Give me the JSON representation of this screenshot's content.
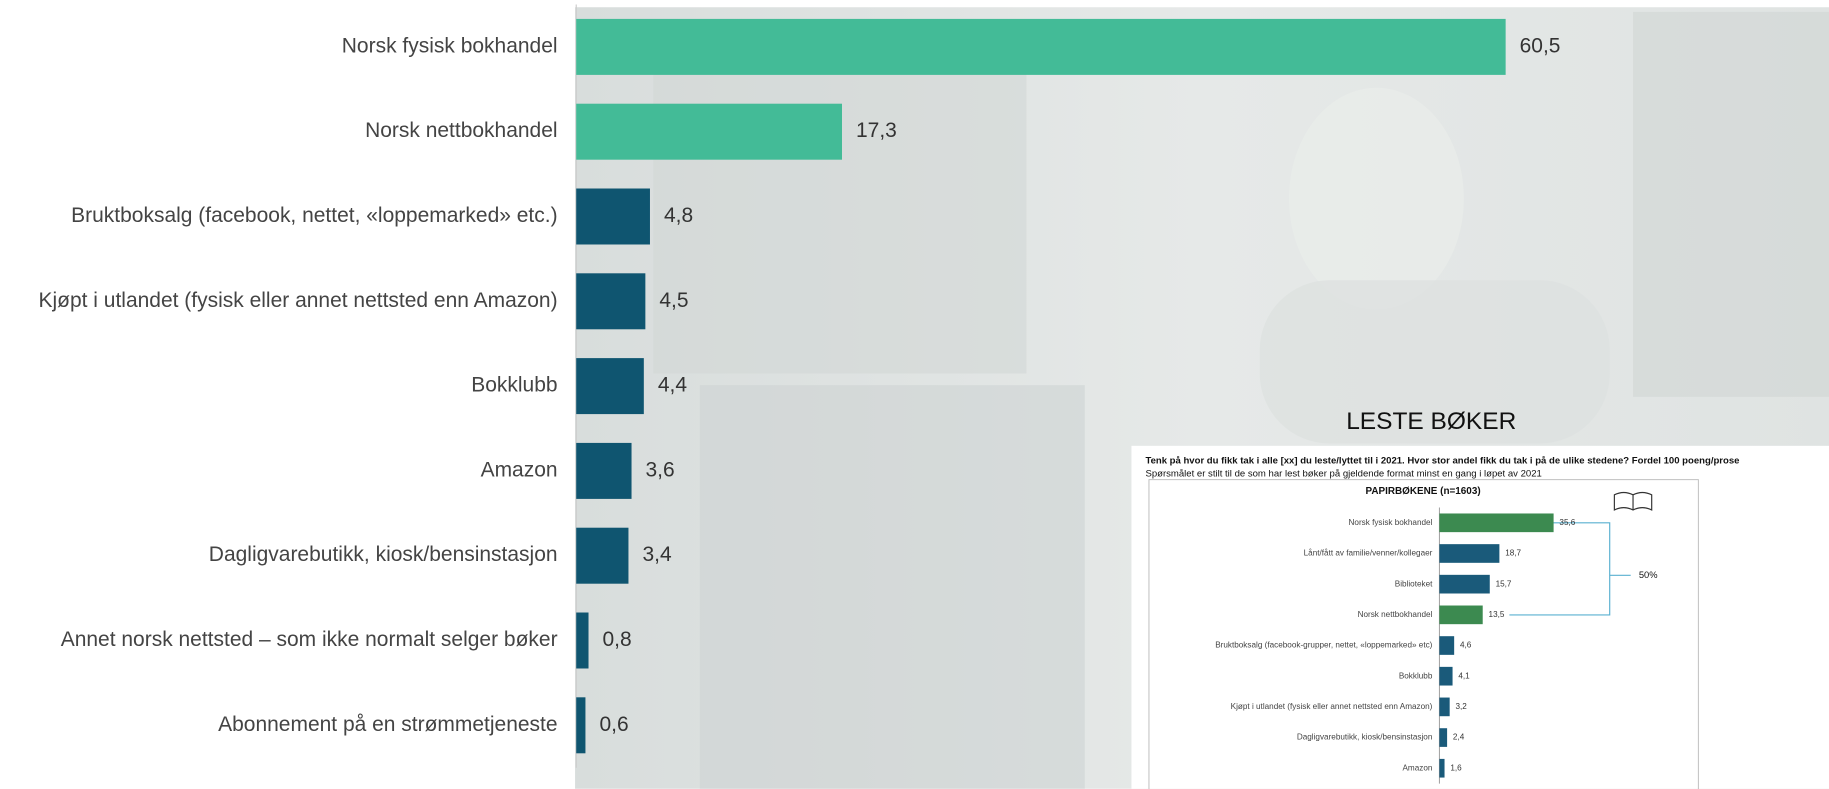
{
  "chart_data": [
    {
      "type": "bar",
      "orientation": "horizontal",
      "categories": [
        "Norsk fysisk bokhandel",
        "Norsk nettbokhandel",
        "Bruktboksalg (facebook, nettet, «loppemarked» etc.)",
        "Kjøpt i utlandet (fysisk eller annet nettsted enn Amazon)",
        "Bokklubb",
        "Amazon",
        "Dagligvarebutikk, kiosk/bensinstasjon",
        "Annet norsk nettsted – som ikke normalt selger bøker",
        "Abonnement på en strømmetjeneste"
      ],
      "values": [
        60.5,
        17.3,
        4.8,
        4.5,
        4.4,
        3.6,
        3.4,
        0.8,
        0.6
      ],
      "value_labels": [
        "60,5",
        "17,3",
        "4,8",
        "4,5",
        "4,4",
        "3,6",
        "3,4",
        "0,8",
        "0,6"
      ],
      "colors": [
        "#43bb97",
        "#43bb97",
        "#0f5570",
        "#0f5570",
        "#0f5570",
        "#0f5570",
        "#0f5570",
        "#0f5570",
        "#0f5570"
      ]
    },
    {
      "type": "bar",
      "orientation": "horizontal",
      "title": "LESTE BØKER",
      "subtitle": "Tenk på hvor du fikk tak i alle [xx] du leste/lyttet til i 2021. Hvor stor andel fikk du tak i på de ulike stedene? Fordel 100 poeng/prose",
      "note": "Spørsmålet er stilt til de som har lest bøker på gjeldende format minst en gang i løpet av 2021",
      "panel_title": "PAPIRBØKENE (n=1603)",
      "categories": [
        "Norsk fysisk bokhandel",
        "Lånt/fått av familie/venner/kollegaer",
        "Biblioteket",
        "Norsk nettbokhandel",
        "Bruktboksalg (facebook-grupper, nettet, «loppemarked» etc)",
        "Bokklubb",
        "Kjøpt i utlandet (fysisk eller annet nettsted enn Amazon)",
        "Dagligvarebutikk, kiosk/bensinstasjon",
        "Amazon"
      ],
      "values": [
        35.6,
        18.7,
        15.7,
        13.5,
        4.6,
        4.1,
        3.2,
        2.4,
        1.6
      ],
      "value_labels": [
        "35,6",
        "18,7",
        "15,7",
        "13,5",
        "4,6",
        "4,1",
        "3,2",
        "2,4",
        "1,6"
      ],
      "colors": [
        "#3c8a50",
        "#1a5a7a",
        "#1a5a7a",
        "#3c8a50",
        "#1a5a7a",
        "#1a5a7a",
        "#1a5a7a",
        "#1a5a7a",
        "#1a5a7a"
      ],
      "annotation": "50%"
    }
  ]
}
